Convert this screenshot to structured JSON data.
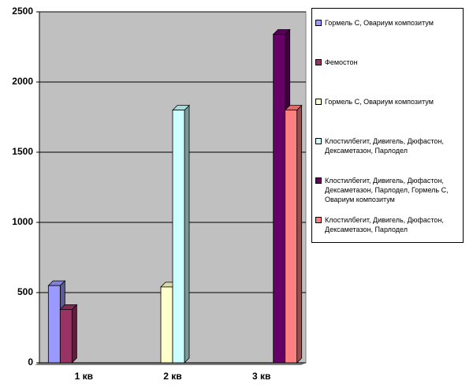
{
  "chart_data": {
    "type": "bar",
    "categories": [
      "1 кв",
      "2 кв",
      "3 кв"
    ],
    "series": [
      {
        "name": "Гормель С, Овариум композитум",
        "color": "#9999ff",
        "values": [
          550,
          null,
          null
        ]
      },
      {
        "name": "Фемостон",
        "color": "#993366",
        "values": [
          380,
          null,
          null
        ]
      },
      {
        "name": "Гормель С, Овариум композитум",
        "color": "#ffffcc",
        "values": [
          null,
          540,
          null
        ]
      },
      {
        "name": "Клостилбегит, Дивигель, Дюфастон, Дексаметазон, Парлодел",
        "color": "#ccffff",
        "values": [
          null,
          1800,
          null
        ]
      },
      {
        "name": "Клостилбегит, Дивигель, Дюфастон, Дексаметазон, Парлодел, Гормель С, Овариум композитум",
        "color": "#660066",
        "values": [
          null,
          null,
          2340
        ]
      },
      {
        "name": "Клостилбегит, Дивигель, Дюфастон, Дексаметазон, Парлодел",
        "color": "#ff8080",
        "values": [
          null,
          null,
          1800
        ]
      }
    ],
    "ylim": [
      0,
      2500
    ],
    "yticks": [
      0,
      500,
      1000,
      1500,
      2000,
      2500
    ],
    "grid": true
  }
}
